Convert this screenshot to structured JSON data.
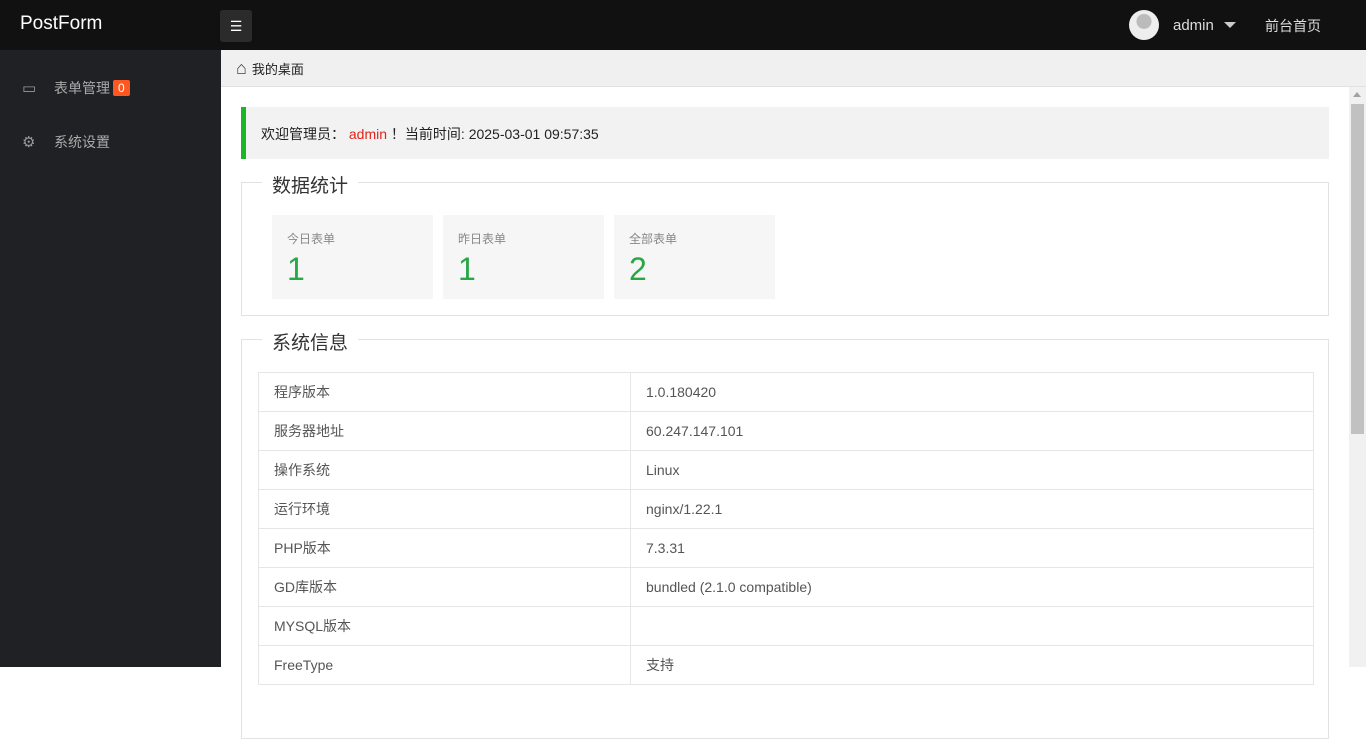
{
  "header": {
    "logo": "PostForm",
    "user": "admin",
    "front_link": "前台首页"
  },
  "sidebar": {
    "items": [
      {
        "label": "表单管理",
        "icon": "message-icon",
        "badge": "0"
      },
      {
        "label": "系统设置",
        "icon": "gear-icon"
      }
    ]
  },
  "breadcrumb": {
    "label": "我的桌面"
  },
  "welcome": {
    "prefix": "欢迎管理员：",
    "user": "admin",
    "suffix": "！当前时间: 2025-03-01 09:57:35"
  },
  "stats": {
    "title": "数据统计",
    "cards": [
      {
        "label": "今日表单",
        "value": "1"
      },
      {
        "label": "昨日表单",
        "value": "1"
      },
      {
        "label": "全部表单",
        "value": "2"
      }
    ]
  },
  "sysinfo": {
    "title": "系统信息",
    "rows": [
      {
        "k": "程序版本",
        "v": "1.0.180420"
      },
      {
        "k": "服务器地址",
        "v": "60.247.147.101"
      },
      {
        "k": "操作系统",
        "v": "Linux"
      },
      {
        "k": "运行环境",
        "v": "nginx/1.22.1"
      },
      {
        "k": "PHP版本",
        "v": "7.3.31"
      },
      {
        "k": "GD库版本",
        "v": "bundled (2.1.0 compatible)"
      },
      {
        "k": "MYSQL版本",
        "v": ""
      },
      {
        "k": "FreeType",
        "v": "支持"
      }
    ]
  },
  "colors": {
    "accent_green": "#1ab626",
    "badge": "#ff5722",
    "stat_number": "#28a745"
  }
}
